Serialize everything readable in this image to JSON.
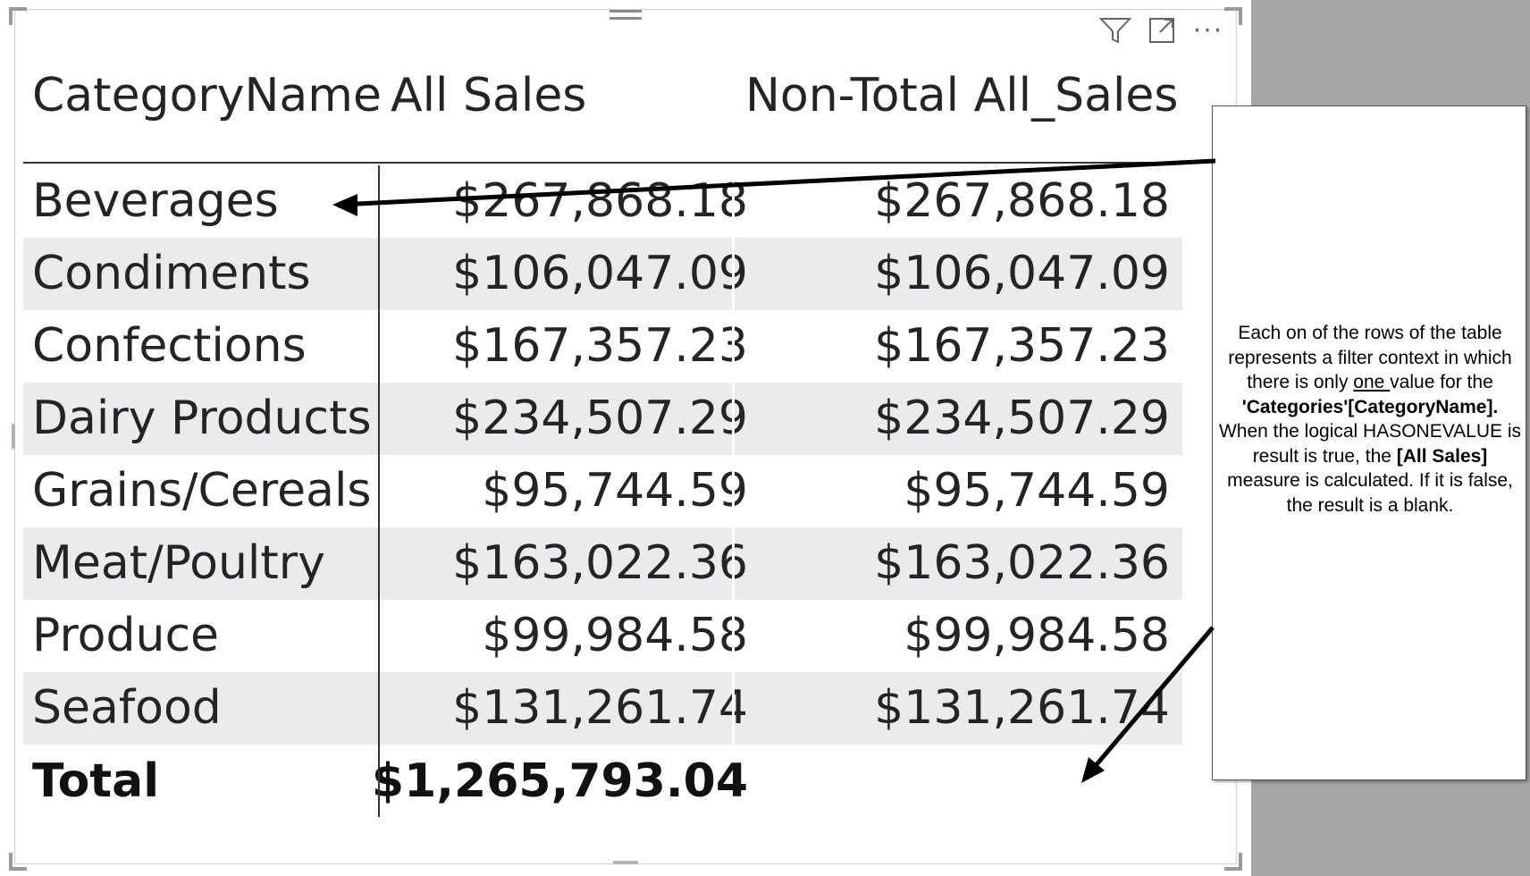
{
  "table": {
    "headers": [
      "CategoryName",
      "All Sales",
      "Non-Total All_Sales"
    ],
    "rows": [
      {
        "category": "Beverages",
        "all_sales": "$267,868.18",
        "non_total": "$267,868.18"
      },
      {
        "category": "Condiments",
        "all_sales": "$106,047.09",
        "non_total": "$106,047.09"
      },
      {
        "category": "Confections",
        "all_sales": "$167,357.23",
        "non_total": "$167,357.23"
      },
      {
        "category": "Dairy Products",
        "all_sales": "$234,507.29",
        "non_total": "$234,507.29"
      },
      {
        "category": "Grains/Cereals",
        "all_sales": "$95,744.59",
        "non_total": "$95,744.59"
      },
      {
        "category": "Meat/Poultry",
        "all_sales": "$163,022.36",
        "non_total": "$163,022.36"
      },
      {
        "category": "Produce",
        "all_sales": "$99,984.58",
        "non_total": "$99,984.58"
      },
      {
        "category": "Seafood",
        "all_sales": "$131,261.74",
        "non_total": "$131,261.74"
      }
    ],
    "total": {
      "label": "Total",
      "all_sales": "$1,265,793.04",
      "non_total": ""
    }
  },
  "toolbar": {
    "icons": [
      "filter-icon",
      "focus-mode-icon",
      "more-options-icon"
    ],
    "filter_glyph": "⛉",
    "more_glyph": "···"
  },
  "callout": {
    "t1": "Each on of the rows of the table represents a filter context in which there is only ",
    "t2": "one ",
    "t3": "value for the ",
    "t4": "'Categories'[CategoryName].",
    "t5": " When the logical HASONEVALUE is result is true, the ",
    "t6": "[All Sales]",
    "t7": " measure is calculated. If it is false, the result is a blank."
  },
  "colors": {
    "alt_row": "#ebebed",
    "text": "#252423",
    "side_panel": "#a6a6a6"
  }
}
